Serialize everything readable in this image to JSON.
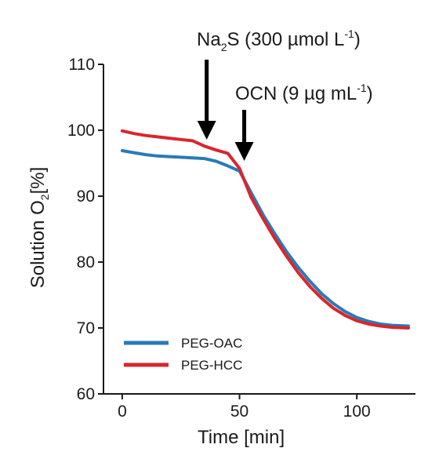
{
  "chart_data": {
    "type": "line",
    "title": "",
    "xlabel": "Time [min]",
    "ylabel": {
      "main": "Solution O",
      "sub": "2",
      "rest": "[%]"
    },
    "xlim": [
      -8,
      125
    ],
    "ylim": [
      60,
      110
    ],
    "xticks": [
      0,
      50,
      100
    ],
    "yticks": [
      60,
      70,
      80,
      90,
      100,
      110
    ],
    "grid": false,
    "legend_position": "bottom-left",
    "series": [
      {
        "name": "PEG-OAC",
        "color": "#2a7ab8",
        "x": [
          0,
          5,
          10,
          15,
          20,
          25,
          30,
          35,
          40,
          45,
          50,
          55,
          60,
          65,
          70,
          75,
          80,
          85,
          90,
          95,
          100,
          105,
          110,
          115,
          122
        ],
        "y": [
          96.9,
          96.6,
          96.3,
          96.1,
          96.0,
          95.9,
          95.8,
          95.7,
          95.3,
          94.6,
          93.8,
          90.5,
          87.2,
          84.3,
          81.6,
          79.2,
          77.1,
          75.2,
          73.7,
          72.5,
          71.6,
          71.0,
          70.6,
          70.4,
          70.3
        ]
      },
      {
        "name": "PEG-HCC",
        "color": "#d9262e",
        "x": [
          0,
          5,
          10,
          15,
          20,
          25,
          30,
          35,
          40,
          45,
          50,
          55,
          60,
          65,
          70,
          75,
          80,
          85,
          90,
          95,
          100,
          105,
          110,
          115,
          122
        ],
        "y": [
          99.9,
          99.5,
          99.2,
          99.0,
          98.8,
          98.6,
          98.4,
          97.6,
          97.0,
          96.5,
          94.2,
          89.8,
          86.6,
          83.6,
          80.9,
          78.4,
          76.3,
          74.5,
          73.0,
          71.9,
          71.1,
          70.6,
          70.3,
          70.1,
          70.0
        ]
      }
    ],
    "annotations": [
      {
        "id": "na2s",
        "main": "Na",
        "sub": "2",
        "main2": "S (300 µmol L",
        "sup": "-1",
        "end": ")",
        "arrow_x": 36
      },
      {
        "id": "ocn",
        "main": "OCN (9 µg mL",
        "sup": "-1",
        "end": ")",
        "arrow_x": 52
      }
    ]
  }
}
